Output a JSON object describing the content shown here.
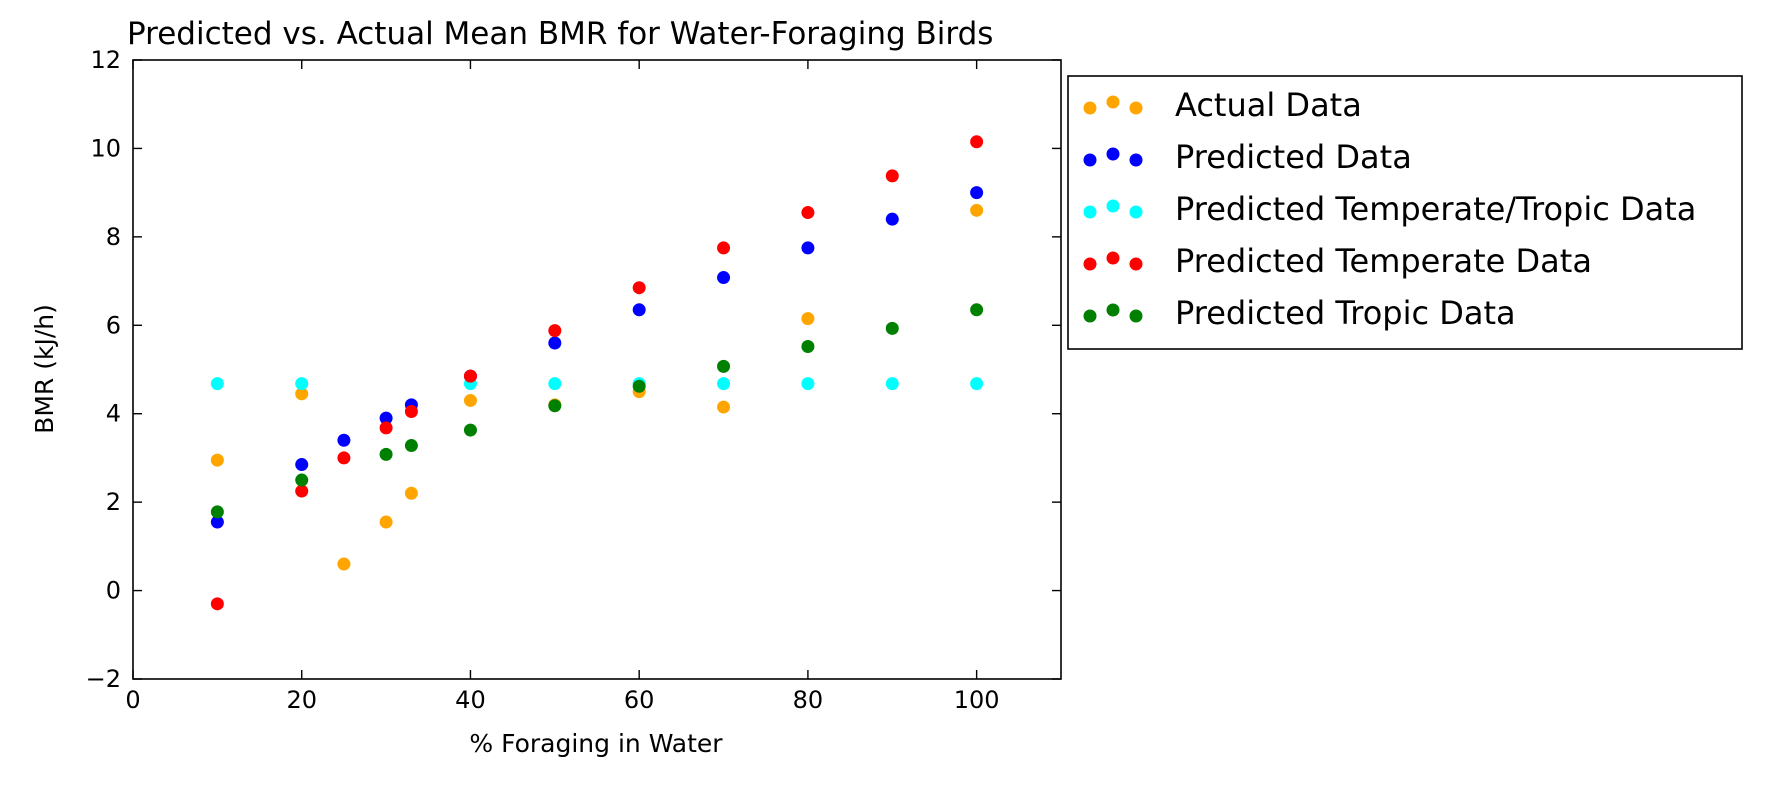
{
  "chart_data": {
    "type": "scatter",
    "title": "Predicted vs. Actual Mean BMR for Water-Foraging Birds",
    "xlabel": "% Foraging in Water",
    "ylabel": "BMR (kJ/h)",
    "xlim": [
      0,
      110
    ],
    "ylim": [
      -2,
      12
    ],
    "xticks": [
      0,
      20,
      40,
      60,
      80,
      100
    ],
    "yticks": [
      -2,
      0,
      2,
      4,
      6,
      8,
      10,
      12
    ],
    "xtick_labels": [
      "0",
      "20",
      "40",
      "60",
      "80",
      "100"
    ],
    "ytick_labels": [
      "−2",
      "0",
      "2",
      "4",
      "6",
      "8",
      "10",
      "12"
    ],
    "grid": false,
    "legend_position": "outside-right-top",
    "series": [
      {
        "name": "Actual Data",
        "color": "#ffa500",
        "points": [
          [
            10,
            2.95
          ],
          [
            20,
            4.45
          ],
          [
            25,
            0.6
          ],
          [
            30,
            1.55
          ],
          [
            33,
            2.2
          ],
          [
            40,
            4.3
          ],
          [
            50,
            4.2
          ],
          [
            60,
            4.5
          ],
          [
            70,
            4.15
          ],
          [
            80,
            6.15
          ],
          [
            100,
            8.6
          ]
        ]
      },
      {
        "name": "Predicted Data",
        "color": "#0000ff",
        "points": [
          [
            10,
            1.55
          ],
          [
            20,
            2.85
          ],
          [
            25,
            3.4
          ],
          [
            30,
            3.9
          ],
          [
            33,
            4.2
          ],
          [
            40,
            4.85
          ],
          [
            50,
            5.6
          ],
          [
            60,
            6.35
          ],
          [
            70,
            7.08
          ],
          [
            80,
            7.75
          ],
          [
            90,
            8.4
          ],
          [
            100,
            9.0
          ]
        ]
      },
      {
        "name": "Predicted Temperate/Tropic Data",
        "color": "#00ffff",
        "points": [
          [
            10,
            4.68
          ],
          [
            20,
            4.68
          ],
          [
            40,
            4.68
          ],
          [
            50,
            4.68
          ],
          [
            60,
            4.68
          ],
          [
            70,
            4.68
          ],
          [
            80,
            4.68
          ],
          [
            90,
            4.68
          ],
          [
            100,
            4.68
          ]
        ]
      },
      {
        "name": "Predicted Temperate Data",
        "color": "#ff0000",
        "points": [
          [
            10,
            -0.3
          ],
          [
            20,
            2.25
          ],
          [
            25,
            3.0
          ],
          [
            30,
            3.68
          ],
          [
            33,
            4.05
          ],
          [
            40,
            4.85
          ],
          [
            50,
            5.88
          ],
          [
            60,
            6.85
          ],
          [
            70,
            7.75
          ],
          [
            80,
            8.55
          ],
          [
            90,
            9.38
          ],
          [
            100,
            10.15
          ]
        ]
      },
      {
        "name": "Predicted Tropic Data",
        "color": "#008000",
        "points": [
          [
            10,
            1.78
          ],
          [
            20,
            2.5
          ],
          [
            30,
            3.08
          ],
          [
            33,
            3.28
          ],
          [
            40,
            3.63
          ],
          [
            50,
            4.18
          ],
          [
            60,
            4.62
          ],
          [
            70,
            5.07
          ],
          [
            80,
            5.52
          ],
          [
            90,
            5.93
          ],
          [
            100,
            6.35
          ]
        ]
      }
    ]
  }
}
